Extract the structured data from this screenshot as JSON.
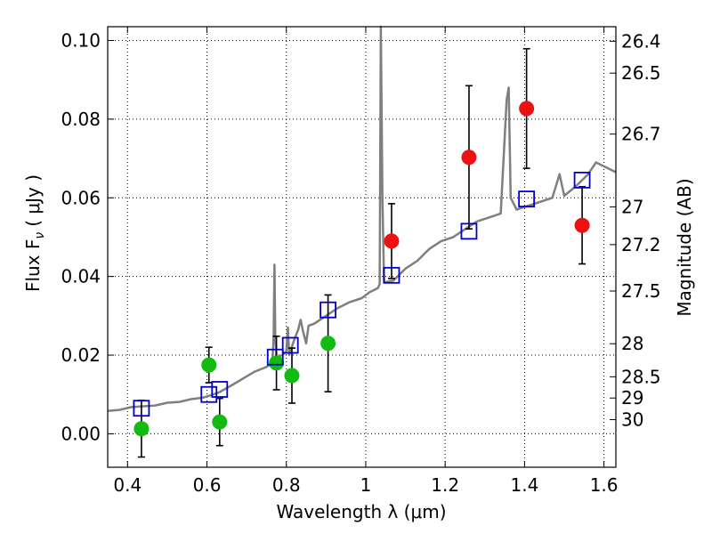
{
  "chart_data": {
    "type": "scatter",
    "xlabel": "Wavelength  λ (μm)",
    "ylabel": "Flux  F",
    "ylabel_sub": "ν",
    "ylabel_unit": "( μJy )",
    "ylabel_right": "Magnitude (AB)",
    "xlim": [
      0.35,
      1.63
    ],
    "ylim": [
      -0.0085,
      0.1035
    ],
    "grid": true,
    "x_ticks": [
      0.4,
      0.6,
      0.8,
      1.0,
      1.2,
      1.4,
      1.6
    ],
    "x_tick_labels": [
      "0.4",
      "0.6",
      "0.8",
      "1",
      "1.2",
      "1.4",
      "1.6"
    ],
    "y_ticks": [
      0.0,
      0.02,
      0.04,
      0.06,
      0.08,
      0.1
    ],
    "y_tick_labels": [
      "0.00",
      "0.02",
      "0.04",
      "0.06",
      "0.08",
      "0.10"
    ],
    "right_ticks": [
      {
        "label": "26.4",
        "flux": 0.0998
      },
      {
        "label": "26.5",
        "flux": 0.0917
      },
      {
        "label": "26.7",
        "flux": 0.0762
      },
      {
        "label": "27",
        "flux": 0.0577
      },
      {
        "label": "27.2",
        "flux": 0.0481
      },
      {
        "label": "27.5",
        "flux": 0.0363
      },
      {
        "label": "28",
        "flux": 0.0229
      },
      {
        "label": "28.5",
        "flux": 0.0145
      },
      {
        "label": "29",
        "flux": 0.0091
      },
      {
        "label": "30",
        "flux": 0.0036
      }
    ],
    "colors": {
      "green": "#11bb11",
      "red": "#ee1111",
      "blue_square": "#0000cc",
      "model": "#7f7f7f",
      "error": "#000000"
    },
    "series": [
      {
        "marker": "circle",
        "color": "green",
        "points": [
          {
            "x": 0.435,
            "y": 0.0013,
            "err": 0.0072
          },
          {
            "x": 0.605,
            "y": 0.0175,
            "err": 0.0045
          },
          {
            "x": 0.632,
            "y": 0.003,
            "err": 0.006
          },
          {
            "x": 0.775,
            "y": 0.018,
            "err": 0.0068
          },
          {
            "x": 0.814,
            "y": 0.0148,
            "err": 0.007
          },
          {
            "x": 0.905,
            "y": 0.023,
            "err": 0.0123
          }
        ]
      },
      {
        "marker": "circle",
        "color": "red",
        "points": [
          {
            "x": 1.065,
            "y": 0.049,
            "err": 0.0095
          },
          {
            "x": 1.26,
            "y": 0.0703,
            "err": 0.0182
          },
          {
            "x": 1.405,
            "y": 0.0827,
            "err": 0.0152
          },
          {
            "x": 1.545,
            "y": 0.053,
            "err": 0.0098
          }
        ]
      },
      {
        "marker": "open-square",
        "color": "blue_square",
        "points": [
          {
            "x": 0.435,
            "y": 0.0065
          },
          {
            "x": 0.605,
            "y": 0.01
          },
          {
            "x": 0.632,
            "y": 0.0113
          },
          {
            "x": 0.772,
            "y": 0.0195
          },
          {
            "x": 0.81,
            "y": 0.0225
          },
          {
            "x": 0.905,
            "y": 0.0315
          },
          {
            "x": 1.065,
            "y": 0.0403
          },
          {
            "x": 1.26,
            "y": 0.0515
          },
          {
            "x": 1.405,
            "y": 0.0597
          },
          {
            "x": 1.545,
            "y": 0.0645
          }
        ]
      }
    ],
    "model_curve": [
      [
        0.35,
        0.0058
      ],
      [
        0.38,
        0.0061
      ],
      [
        0.41,
        0.0068
      ],
      [
        0.44,
        0.007
      ],
      [
        0.47,
        0.0072
      ],
      [
        0.5,
        0.0079
      ],
      [
        0.53,
        0.0081
      ],
      [
        0.56,
        0.0088
      ],
      [
        0.59,
        0.0092
      ],
      [
        0.61,
        0.0098
      ],
      [
        0.63,
        0.0105
      ],
      [
        0.66,
        0.0122
      ],
      [
        0.69,
        0.014
      ],
      [
        0.72,
        0.0158
      ],
      [
        0.75,
        0.017
      ],
      [
        0.765,
        0.018
      ],
      [
        0.768,
        0.025
      ],
      [
        0.77,
        0.043
      ],
      [
        0.772,
        0.025
      ],
      [
        0.775,
        0.0195
      ],
      [
        0.79,
        0.02
      ],
      [
        0.8,
        0.021
      ],
      [
        0.804,
        0.027
      ],
      [
        0.807,
        0.02
      ],
      [
        0.82,
        0.024
      ],
      [
        0.83,
        0.0265
      ],
      [
        0.836,
        0.029
      ],
      [
        0.842,
        0.026
      ],
      [
        0.85,
        0.023
      ],
      [
        0.856,
        0.0275
      ],
      [
        0.87,
        0.028
      ],
      [
        0.9,
        0.03
      ],
      [
        0.93,
        0.032
      ],
      [
        0.96,
        0.0335
      ],
      [
        0.99,
        0.0345
      ],
      [
        1.01,
        0.036
      ],
      [
        1.03,
        0.037
      ],
      [
        1.035,
        0.038
      ],
      [
        1.038,
        0.104
      ],
      [
        1.042,
        0.06
      ],
      [
        1.046,
        0.0385
      ],
      [
        1.07,
        0.039
      ],
      [
        1.1,
        0.042
      ],
      [
        1.13,
        0.044
      ],
      [
        1.16,
        0.047
      ],
      [
        1.19,
        0.049
      ],
      [
        1.22,
        0.05
      ],
      [
        1.25,
        0.052
      ],
      [
        1.28,
        0.054
      ],
      [
        1.31,
        0.055
      ],
      [
        1.34,
        0.056
      ],
      [
        1.355,
        0.085
      ],
      [
        1.36,
        0.088
      ],
      [
        1.365,
        0.06
      ],
      [
        1.38,
        0.057
      ],
      [
        1.41,
        0.058
      ],
      [
        1.44,
        0.059
      ],
      [
        1.47,
        0.06
      ],
      [
        1.488,
        0.066
      ],
      [
        1.5,
        0.0605
      ],
      [
        1.53,
        0.063
      ],
      [
        1.56,
        0.066
      ],
      [
        1.58,
        0.069
      ],
      [
        1.6,
        0.068
      ],
      [
        1.63,
        0.0665
      ]
    ]
  }
}
